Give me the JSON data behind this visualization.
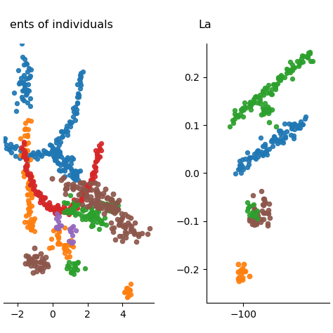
{
  "background_color": "#ffffff",
  "point_size": 18,
  "point_alpha": 0.9,
  "fig_title_left": "ents of individuals",
  "fig_title_right": "La",
  "left": {
    "xlim": [
      -2.8,
      5.8
    ],
    "ylim": [
      -3.2,
      3.5
    ],
    "xticks": [
      -2,
      0,
      2,
      4
    ]
  },
  "right": {
    "xlim": [
      -130,
      -30
    ],
    "ylim": [
      -0.27,
      0.27
    ],
    "xticks": [
      -100
    ],
    "yticks": [
      0.2,
      0.1,
      0.0,
      -0.1,
      -0.2
    ]
  }
}
